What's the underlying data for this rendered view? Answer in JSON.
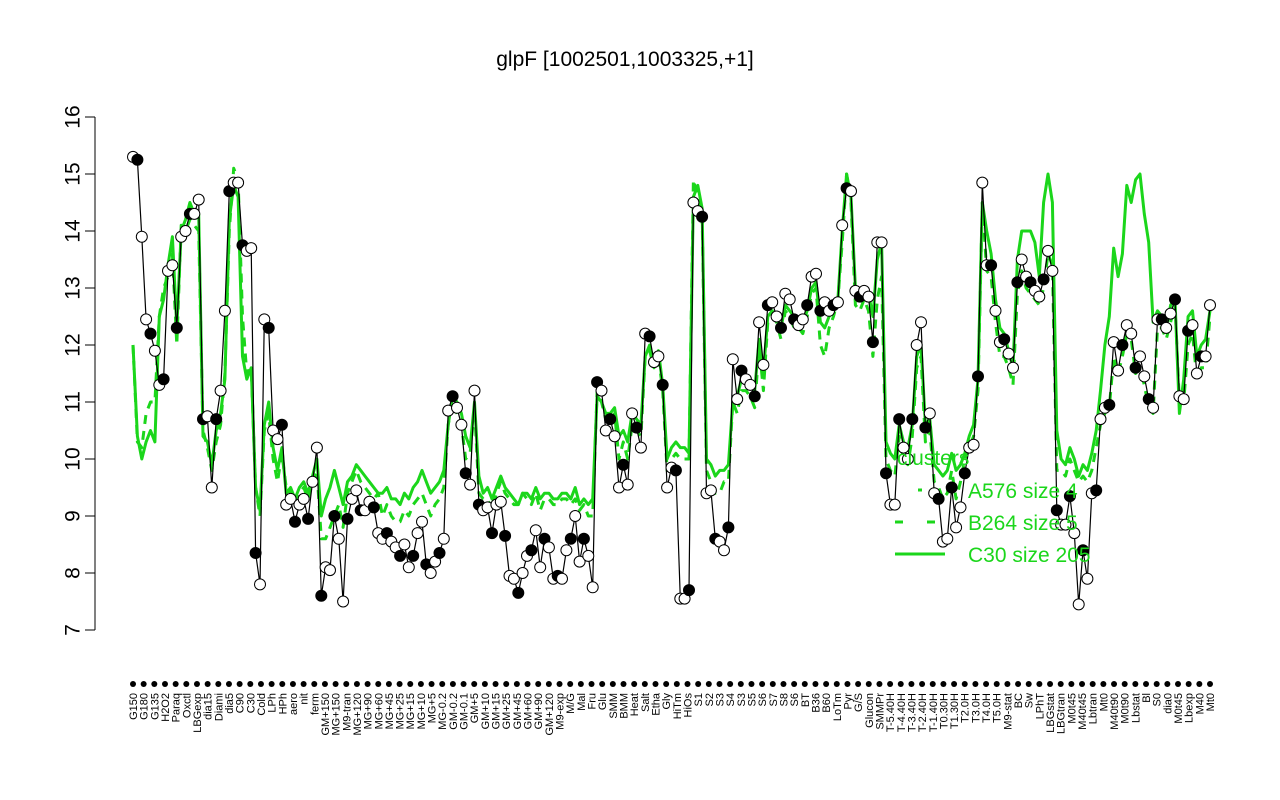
{
  "chart_data": {
    "type": "line",
    "title": "glpF [1002501,1003325,+1]",
    "xlabel": "",
    "ylabel": "",
    "ylim": [
      7,
      16
    ],
    "yticks": [
      7,
      8,
      9,
      10,
      11,
      12,
      13,
      14,
      15,
      16
    ],
    "grid": false,
    "legend": {
      "placement": "right-middle",
      "title": "clusters",
      "entries": [
        "A576 size 4",
        "B264 size 5",
        "C30 size 205"
      ],
      "color": "#1bd61b"
    },
    "colors": {
      "line": "#000000",
      "cluster": "#1bd61b",
      "point_open": "#ffffff",
      "point_filled": "#000000"
    },
    "xtick_labels": [
      "G150",
      "G180",
      "G135",
      "H2O2",
      "Paraq",
      "Oxctl",
      "LBGexp",
      "dia15",
      "Diami",
      "dia5",
      "C90",
      "C30",
      "Cold",
      "LPh",
      "HPh",
      "aero",
      "nit",
      "ferm",
      "GM+150",
      "MG+150",
      "M9-tran",
      "MG+120",
      "MG+90",
      "MG+60",
      "MG+45",
      "MG+25",
      "MG+15",
      "MG+10",
      "MG+5",
      "MG-0.2",
      "GM-0.2",
      "GM-0.1",
      "GM+5",
      "GM+10",
      "GM+15",
      "GM+25",
      "GM+45",
      "GM+60",
      "GM+90",
      "GM+120",
      "M9-exp",
      "M/G",
      "Mal",
      "Fru",
      "Glu",
      "SMM",
      "BMM",
      "Heat",
      "Salt",
      "Etha",
      "Gly",
      "HiTm",
      "HiOs",
      "S1",
      "S2",
      "S3",
      "S4",
      "S3",
      "S5",
      "S6",
      "S7",
      "S8",
      "S6",
      "BT",
      "B36",
      "B60",
      "LoTm",
      "Pyr",
      "G/S",
      "Glucon",
      "SMMPr",
      "T-5.40H",
      "T-4.40H",
      "T-3.40H",
      "T-2.40H",
      "T-1.40H",
      "T0.30H",
      "T1.30H",
      "T2.0H",
      "T3.0H",
      "T4.0H",
      "T5.0H",
      "M9-stat",
      "BC",
      "Sw",
      "LPhT",
      "LBGstat",
      "LBGtran",
      "M0t45",
      "M40t45",
      "Lbtran",
      "Mt0",
      "M40t90",
      "M0t90",
      "Lbstat",
      "Bl",
      "S0",
      "dia0",
      "M0t45",
      "Lbexp",
      "M40",
      "Mt0"
    ],
    "series": [
      {
        "name": "",
        "y": [
          15.3,
          15.25,
          13.9,
          12.45,
          12.2,
          11.9,
          11.3,
          11.4,
          13.3,
          13.4,
          12.3,
          13.9,
          14.0,
          14.3,
          14.3,
          14.55,
          10.7,
          10.75,
          9.5,
          10.7,
          11.2,
          12.6,
          14.7,
          14.85,
          14.85,
          13.75,
          13.65,
          13.7,
          8.35,
          7.8,
          12.45,
          12.3,
          10.5,
          10.35,
          10.6,
          9.2,
          9.3,
          8.9,
          9.2,
          9.3,
          8.95,
          9.6,
          10.2,
          7.6,
          8.1,
          8.05,
          9.0,
          8.6,
          7.5,
          8.95,
          9.3,
          9.45,
          9.1,
          9.1,
          9.25,
          9.15,
          8.7,
          8.6,
          8.7,
          8.55,
          8.45,
          8.3,
          8.5,
          8.1,
          8.3,
          8.7,
          8.9,
          8.15,
          8.0,
          8.2,
          8.35,
          8.6,
          10.85,
          11.1,
          10.9,
          10.6,
          9.75,
          9.55,
          11.2,
          9.2,
          9.1,
          9.15,
          8.7,
          9.2,
          9.25,
          8.65,
          7.95,
          7.9,
          7.65,
          8.0,
          8.3,
          8.4,
          8.75,
          8.1,
          8.6,
          8.45,
          7.9,
          7.95,
          7.9,
          8.4,
          8.6,
          9.0,
          8.2,
          8.6,
          8.3,
          7.75,
          11.35,
          11.2,
          10.5,
          10.7,
          10.4,
          9.5,
          9.9,
          9.55,
          10.8,
          10.55,
          10.2,
          12.2,
          12.15,
          11.7,
          11.8,
          11.3,
          9.5,
          9.85,
          9.8,
          7.55,
          7.55,
          7.7,
          14.5,
          14.35,
          14.25,
          9.4,
          9.45,
          8.6,
          8.55,
          8.4,
          8.8,
          11.75,
          11.05,
          11.55,
          11.4,
          11.3,
          11.1,
          12.4,
          11.65,
          12.7,
          12.75,
          12.5,
          12.3,
          12.9,
          12.8,
          12.45,
          12.35,
          12.45,
          12.7,
          13.2,
          13.25,
          12.6,
          12.75,
          12.6,
          12.7,
          12.75,
          14.1,
          14.75,
          14.7,
          12.95,
          12.85,
          12.95,
          12.85,
          12.05,
          13.8,
          13.8,
          9.75,
          9.2,
          9.2,
          10.7,
          10.2,
          10.0,
          10.7,
          12.0,
          12.4,
          10.55,
          10.8,
          9.4,
          9.3,
          8.55,
          8.6,
          9.5,
          8.8,
          9.15,
          9.75,
          10.2,
          10.25,
          11.45,
          14.85,
          13.4,
          13.4,
          12.6,
          12.05,
          12.1,
          11.85,
          11.6,
          13.1,
          13.5,
          13.2,
          13.1,
          12.95,
          12.85,
          13.15,
          13.65,
          13.3,
          9.1,
          8.85,
          8.85,
          9.35,
          8.7,
          7.45,
          8.4,
          7.9,
          9.4,
          9.45,
          10.7,
          10.9,
          10.95,
          12.05,
          11.55,
          12.0,
          12.35,
          12.2,
          11.6,
          11.8,
          11.45,
          11.05,
          10.9,
          12.45,
          12.45,
          12.3,
          12.55,
          12.8,
          11.1,
          11.05,
          12.25,
          12.35,
          11.5,
          11.8,
          11.8,
          12.7
        ]
      },
      {
        "name": "",
        "y": [
          12.0,
          10.3,
          10.2,
          10.8,
          11.0,
          11.0,
          12.5,
          13.0,
          13.2,
          13.6,
          12.0,
          14.1,
          14.0,
          14.2,
          14.1,
          14.0,
          10.5,
          10.2,
          9.8,
          10.3,
          10.6,
          11.5,
          14.0,
          15.1,
          14.9,
          12.5,
          11.5,
          11.6,
          9.5,
          9.0,
          10.5,
          10.8,
          10.0,
          9.6,
          10.1,
          9.5,
          9.4,
          9.2,
          9.4,
          9.5,
          9.3,
          9.6,
          9.8,
          8.6,
          8.6,
          8.8,
          9.0,
          9.2,
          8.8,
          9.4,
          9.6,
          9.8,
          9.6,
          9.5,
          9.4,
          9.3,
          9.4,
          9.0,
          9.2,
          9.0,
          8.9,
          8.9,
          9.1,
          9.0,
          9.2,
          9.3,
          9.4,
          9.2,
          9.0,
          9.2,
          9.3,
          9.5,
          10.6,
          11.0,
          10.8,
          10.6,
          10.0,
          10.1,
          10.9,
          9.4,
          9.3,
          9.3,
          9.1,
          9.4,
          9.6,
          9.4,
          9.3,
          9.2,
          9.2,
          9.4,
          9.3,
          9.2,
          9.4,
          9.1,
          9.3,
          9.3,
          9.2,
          9.2,
          9.3,
          9.3,
          9.2,
          9.3,
          9.1,
          9.2,
          9.0,
          9.0,
          11.2,
          11.0,
          10.7,
          10.6,
          10.8,
          10.0,
          10.3,
          10.0,
          10.6,
          10.5,
          10.4,
          11.8,
          11.9,
          11.6,
          11.8,
          11.2,
          9.8,
          10.0,
          10.1,
          10.0,
          10.0,
          10.0,
          14.9,
          14.6,
          14.3,
          9.8,
          9.6,
          9.4,
          9.4,
          9.6,
          9.6,
          11.0,
          10.8,
          11.2,
          11.2,
          11.1,
          10.9,
          12.0,
          11.2,
          12.4,
          12.5,
          12.4,
          12.1,
          12.6,
          12.5,
          12.3,
          12.3,
          12.2,
          12.5,
          12.9,
          13.0,
          12.0,
          11.8,
          12.3,
          12.5,
          12.8,
          13.8,
          15.0,
          14.5,
          12.7,
          12.6,
          12.8,
          12.6,
          11.8,
          12.8,
          13.2,
          10.0,
          9.8,
          9.7,
          10.4,
          10.0,
          9.9,
          10.4,
          11.6,
          11.8,
          10.3,
          10.5,
          9.6,
          9.5,
          9.3,
          9.4,
          9.8,
          9.3,
          9.6,
          10.0,
          10.2,
          10.4,
          11.2,
          14.5,
          13.3,
          13.2,
          12.4,
          11.8,
          11.8,
          11.6,
          11.3,
          12.9,
          13.3,
          13.0,
          12.9,
          12.8,
          12.7,
          13.0,
          13.6,
          13.4,
          9.8,
          9.8,
          9.7,
          10.0,
          9.8,
          9.6,
          9.7,
          9.6,
          9.8,
          10.2,
          10.6,
          10.8,
          10.9,
          11.8,
          11.5,
          11.8,
          12.2,
          12.1,
          11.5,
          11.6,
          11.3,
          10.9,
          10.8,
          12.3,
          12.3,
          12.1,
          12.4,
          12.7,
          11.0,
          11.0,
          12.0,
          12.2,
          11.4,
          11.6,
          11.6,
          12.5
        ]
      },
      {
        "name": "",
        "y": [
          12.0,
          10.4,
          10.0,
          10.3,
          10.5,
          10.3,
          12.5,
          12.8,
          13.4,
          13.9,
          12.3,
          14.0,
          14.2,
          14.5,
          14.3,
          14.3,
          10.4,
          10.3,
          9.9,
          10.5,
          10.8,
          11.4,
          14.2,
          14.8,
          14.6,
          11.8,
          11.4,
          11.6,
          9.5,
          9.1,
          10.6,
          11.0,
          10.2,
          9.8,
          10.2,
          9.4,
          9.5,
          9.3,
          9.5,
          9.6,
          9.4,
          9.7,
          10.0,
          9.0,
          9.3,
          9.5,
          9.8,
          9.5,
          9.2,
          9.6,
          9.7,
          9.9,
          9.8,
          9.7,
          9.6,
          9.5,
          9.4,
          9.4,
          9.5,
          9.3,
          9.3,
          9.2,
          9.4,
          9.3,
          9.5,
          9.6,
          9.8,
          9.6,
          9.4,
          9.5,
          9.6,
          9.8,
          10.6,
          11.1,
          11.0,
          10.8,
          10.4,
          10.2,
          11.0,
          9.7,
          9.4,
          9.5,
          9.3,
          9.5,
          9.7,
          9.5,
          9.4,
          9.3,
          9.2,
          9.4,
          9.4,
          9.3,
          9.5,
          9.3,
          9.4,
          9.4,
          9.3,
          9.3,
          9.4,
          9.4,
          9.3,
          9.5,
          9.2,
          9.3,
          9.2,
          9.3,
          11.1,
          11.0,
          10.8,
          10.8,
          10.9,
          10.4,
          10.5,
          10.3,
          10.8,
          10.7,
          10.6,
          11.8,
          12.0,
          11.7,
          11.9,
          11.3,
          10.0,
          10.2,
          10.3,
          10.2,
          10.2,
          10.1,
          14.6,
          14.8,
          14.4,
          10.0,
          9.9,
          9.7,
          9.8,
          9.8,
          9.9,
          11.0,
          11.1,
          11.4,
          11.4,
          11.3,
          11.2,
          12.1,
          11.5,
          12.5,
          12.6,
          12.5,
          12.3,
          12.7,
          12.6,
          12.5,
          12.4,
          12.4,
          12.6,
          13.0,
          13.1,
          12.4,
          12.3,
          12.5,
          12.6,
          12.8,
          14.0,
          15.0,
          14.6,
          13.0,
          12.9,
          13.0,
          12.9,
          12.5,
          13.5,
          13.8,
          10.3,
          10.1,
          10.0,
          10.6,
          10.3,
          10.2,
          10.6,
          11.8,
          12.0,
          10.6,
          10.7,
          9.9,
          9.8,
          9.7,
          9.8,
          10.1,
          9.8,
          9.9,
          10.1,
          10.4,
          10.6,
          11.4,
          14.5,
          14.0,
          13.6,
          12.8,
          12.3,
          12.2,
          11.9,
          11.6,
          13.5,
          14.0,
          14.0,
          14.0,
          13.8,
          13.2,
          14.5,
          15.0,
          14.5,
          10.5,
          10.0,
          9.9,
          10.2,
          10.0,
          9.7,
          9.9,
          9.8,
          10.1,
          10.5,
          11.2,
          12.0,
          12.5,
          13.7,
          13.2,
          13.6,
          14.8,
          14.5,
          14.9,
          15.0,
          14.3,
          13.8,
          12.4,
          12.6,
          12.5,
          12.3,
          12.7,
          12.8,
          10.8,
          11.4,
          12.5,
          12.6,
          11.8,
          12.0,
          12.1,
          12.6
        ]
      }
    ]
  }
}
